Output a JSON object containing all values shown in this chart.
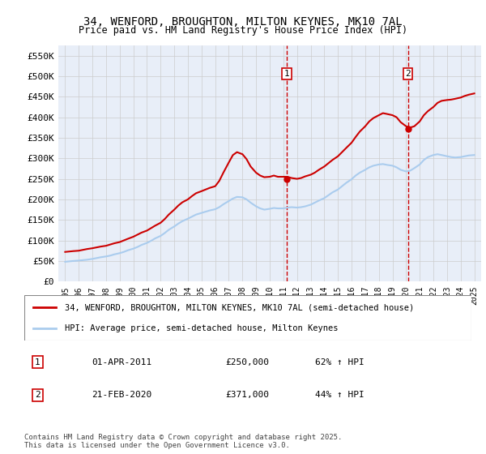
{
  "title_line1": "34, WENFORD, BROUGHTON, MILTON KEYNES, MK10 7AL",
  "title_line2": "Price paid vs. HM Land Registry's House Price Index (HPI)",
  "ylabel": "",
  "background_color": "#f0f4ff",
  "plot_bg_color": "#e8eef8",
  "grid_color": "#cccccc",
  "red_line_color": "#cc0000",
  "blue_line_color": "#aaccee",
  "marker1_x": 2011.25,
  "marker1_y": 250000,
  "marker1_label": "1",
  "marker1_date": "01-APR-2011",
  "marker1_price": "£250,000",
  "marker1_hpi": "62% ↑ HPI",
  "marker2_x": 2020.13,
  "marker2_y": 371000,
  "marker2_label": "2",
  "marker2_date": "21-FEB-2020",
  "marker2_price": "£371,000",
  "marker2_hpi": "44% ↑ HPI",
  "legend_label1": "34, WENFORD, BROUGHTON, MILTON KEYNES, MK10 7AL (semi-detached house)",
  "legend_label2": "HPI: Average price, semi-detached house, Milton Keynes",
  "footer": "Contains HM Land Registry data © Crown copyright and database right 2025.\nThis data is licensed under the Open Government Licence v3.0.",
  "ylim": [
    0,
    575000
  ],
  "xlim_start": 1994.5,
  "xlim_end": 2025.5,
  "yticks": [
    0,
    50000,
    100000,
    150000,
    200000,
    250000,
    300000,
    350000,
    400000,
    450000,
    500000,
    550000
  ],
  "ytick_labels": [
    "£0",
    "£50K",
    "£100K",
    "£150K",
    "£200K",
    "£250K",
    "£300K",
    "£350K",
    "£400K",
    "£450K",
    "£500K",
    "£550K"
  ],
  "xticks": [
    1995,
    1996,
    1997,
    1998,
    1999,
    2000,
    2001,
    2002,
    2003,
    2004,
    2005,
    2006,
    2007,
    2008,
    2009,
    2010,
    2011,
    2012,
    2013,
    2014,
    2015,
    2016,
    2017,
    2018,
    2019,
    2020,
    2021,
    2022,
    2023,
    2024,
    2025
  ],
  "red_x": [
    1995.0,
    1995.3,
    1995.6,
    1996.0,
    1996.3,
    1996.6,
    1997.0,
    1997.3,
    1997.6,
    1998.0,
    1998.3,
    1998.6,
    1999.0,
    1999.3,
    1999.6,
    2000.0,
    2000.3,
    2000.6,
    2001.0,
    2001.3,
    2001.6,
    2002.0,
    2002.3,
    2002.6,
    2003.0,
    2003.3,
    2003.6,
    2004.0,
    2004.3,
    2004.6,
    2005.0,
    2005.3,
    2005.6,
    2006.0,
    2006.3,
    2006.6,
    2007.0,
    2007.3,
    2007.6,
    2008.0,
    2008.3,
    2008.6,
    2009.0,
    2009.3,
    2009.6,
    2010.0,
    2010.3,
    2010.6,
    2011.0,
    2011.3,
    2011.6,
    2012.0,
    2012.3,
    2012.6,
    2013.0,
    2013.3,
    2013.6,
    2014.0,
    2014.3,
    2014.6,
    2015.0,
    2015.3,
    2015.6,
    2016.0,
    2016.3,
    2016.6,
    2017.0,
    2017.3,
    2017.6,
    2018.0,
    2018.3,
    2018.6,
    2019.0,
    2019.3,
    2019.6,
    2020.0,
    2020.3,
    2020.6,
    2021.0,
    2021.3,
    2021.6,
    2022.0,
    2022.3,
    2022.6,
    2023.0,
    2023.3,
    2023.6,
    2024.0,
    2024.3,
    2024.6,
    2025.0
  ],
  "red_y": [
    72000,
    73000,
    74000,
    75000,
    77000,
    79000,
    81000,
    83000,
    85000,
    87000,
    90000,
    93000,
    96000,
    100000,
    104000,
    109000,
    114000,
    119000,
    124000,
    130000,
    136000,
    143000,
    152000,
    163000,
    175000,
    185000,
    193000,
    200000,
    208000,
    215000,
    220000,
    224000,
    228000,
    232000,
    245000,
    265000,
    290000,
    308000,
    315000,
    310000,
    298000,
    280000,
    265000,
    258000,
    254000,
    255000,
    258000,
    255000,
    255000,
    255000,
    252000,
    250000,
    252000,
    256000,
    260000,
    265000,
    272000,
    280000,
    288000,
    296000,
    305000,
    315000,
    325000,
    338000,
    352000,
    365000,
    378000,
    390000,
    398000,
    405000,
    410000,
    408000,
    405000,
    400000,
    388000,
    378000,
    375000,
    378000,
    390000,
    405000,
    415000,
    425000,
    435000,
    440000,
    442000,
    443000,
    445000,
    448000,
    452000,
    455000,
    458000
  ],
  "blue_x": [
    1995.0,
    1995.3,
    1995.6,
    1996.0,
    1996.3,
    1996.6,
    1997.0,
    1997.3,
    1997.6,
    1998.0,
    1998.3,
    1998.6,
    1999.0,
    1999.3,
    1999.6,
    2000.0,
    2000.3,
    2000.6,
    2001.0,
    2001.3,
    2001.6,
    2002.0,
    2002.3,
    2002.6,
    2003.0,
    2003.3,
    2003.6,
    2004.0,
    2004.3,
    2004.6,
    2005.0,
    2005.3,
    2005.6,
    2006.0,
    2006.3,
    2006.6,
    2007.0,
    2007.3,
    2007.6,
    2008.0,
    2008.3,
    2008.6,
    2009.0,
    2009.3,
    2009.6,
    2010.0,
    2010.3,
    2010.6,
    2011.0,
    2011.3,
    2011.6,
    2012.0,
    2012.3,
    2012.6,
    2013.0,
    2013.3,
    2013.6,
    2014.0,
    2014.3,
    2014.6,
    2015.0,
    2015.3,
    2015.6,
    2016.0,
    2016.3,
    2016.6,
    2017.0,
    2017.3,
    2017.6,
    2018.0,
    2018.3,
    2018.6,
    2019.0,
    2019.3,
    2019.6,
    2020.0,
    2020.3,
    2020.6,
    2021.0,
    2021.3,
    2021.6,
    2022.0,
    2022.3,
    2022.6,
    2023.0,
    2023.3,
    2023.6,
    2024.0,
    2024.3,
    2024.6,
    2025.0
  ],
  "blue_y": [
    48000,
    49000,
    50000,
    51000,
    52000,
    53000,
    55000,
    57000,
    59000,
    61000,
    63000,
    66000,
    69000,
    72000,
    76000,
    80000,
    84000,
    89000,
    94000,
    99000,
    105000,
    111000,
    118000,
    126000,
    134000,
    141000,
    147000,
    153000,
    158000,
    163000,
    167000,
    170000,
    173000,
    176000,
    181000,
    188000,
    196000,
    202000,
    206000,
    205000,
    200000,
    192000,
    183000,
    178000,
    175000,
    177000,
    179000,
    178000,
    178000,
    180000,
    181000,
    180000,
    181000,
    183000,
    187000,
    192000,
    197000,
    203000,
    210000,
    217000,
    224000,
    232000,
    240000,
    249000,
    258000,
    265000,
    272000,
    278000,
    282000,
    285000,
    286000,
    284000,
    282000,
    278000,
    272000,
    268000,
    270000,
    276000,
    285000,
    296000,
    303000,
    308000,
    310000,
    308000,
    305000,
    303000,
    302000,
    303000,
    305000,
    307000,
    308000
  ]
}
